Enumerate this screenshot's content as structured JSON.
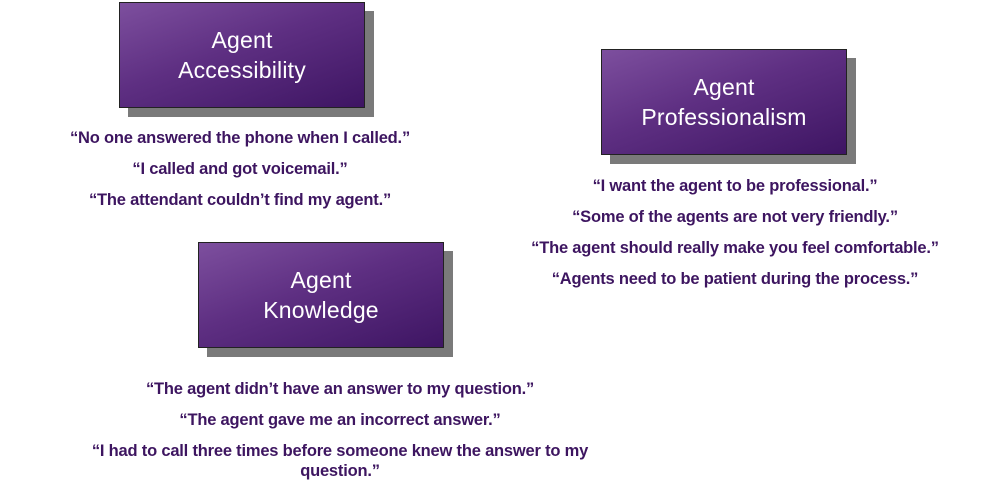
{
  "sections": [
    {
      "title_line1": "Agent",
      "title_line2": "Accessibility",
      "quotes": [
        "“No one answered the phone when I called.”",
        "“I called and got voicemail.”",
        "“The attendant couldn’t find my agent.”"
      ]
    },
    {
      "title_line1": "Agent",
      "title_line2": "Professionalism",
      "quotes": [
        "“I want the agent to be professional.”",
        "“Some of the agents are not very friendly.”",
        "“The agent should really make you feel comfortable.”",
        "“Agents need to be patient during the process.”"
      ]
    },
    {
      "title_line1": "Agent",
      "title_line2": "Knowledge",
      "quotes": [
        "“The agent didn’t have an answer to my question.”",
        "“The agent gave me an incorrect answer.”",
        "“I had to call three times before someone knew the answer to my question.”"
      ]
    }
  ],
  "colors": {
    "box_gradient_light": "#7d4f9e",
    "box_gradient_dark": "#3e1563",
    "quote_text": "#3d1560",
    "shadow": "#7a7a7a"
  }
}
